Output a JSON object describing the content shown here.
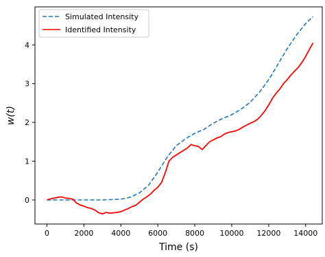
{
  "chart_data": {
    "type": "line",
    "title": "",
    "xlabel": "Time (s)",
    "ylabel": "w(t)",
    "xlim": [
      -650,
      14900
    ],
    "ylim": [
      -0.62,
      4.98
    ],
    "x_ticks": [
      0,
      2000,
      4000,
      6000,
      8000,
      10000,
      12000,
      14000
    ],
    "y_ticks": [
      0,
      1,
      2,
      3,
      4
    ],
    "grid": false,
    "legend_position": "top-left",
    "series": [
      {
        "name": "Simulated Intensity",
        "color": "#1f77b4",
        "style": "dashed",
        "x": [
          0,
          1000,
          2000,
          3000,
          4000,
          4500,
          5000,
          5500,
          6000,
          6500,
          7000,
          7500,
          8000,
          8500,
          9000,
          9500,
          10000,
          10500,
          11000,
          11500,
          12000,
          12500,
          13000,
          13500,
          14000,
          14400
        ],
        "y": [
          0.0,
          0.0,
          0.0,
          0.0,
          0.02,
          0.07,
          0.18,
          0.38,
          0.72,
          1.1,
          1.4,
          1.58,
          1.72,
          1.82,
          1.98,
          2.1,
          2.2,
          2.34,
          2.52,
          2.78,
          3.1,
          3.5,
          3.9,
          4.25,
          4.55,
          4.73
        ]
      },
      {
        "name": "Identified Intensity",
        "color": "#ff0000",
        "style": "solid",
        "x": [
          0,
          200,
          400,
          600,
          800,
          1000,
          1200,
          1400,
          1600,
          1800,
          2000,
          2200,
          2400,
          2600,
          2800,
          3000,
          3200,
          3400,
          3600,
          3800,
          4000,
          4200,
          4400,
          4600,
          4800,
          5000,
          5200,
          5400,
          5600,
          5800,
          6000,
          6200,
          6400,
          6600,
          6800,
          7000,
          7200,
          7400,
          7600,
          7800,
          8000,
          8200,
          8400,
          8600,
          8800,
          9000,
          9200,
          9400,
          9600,
          9800,
          10000,
          10200,
          10400,
          10600,
          10800,
          11000,
          11200,
          11400,
          11600,
          11800,
          12000,
          12200,
          12400,
          12600,
          12800,
          13000,
          13200,
          13400,
          13600,
          13800,
          14000,
          14200,
          14400
        ],
        "y": [
          0.0,
          0.03,
          0.05,
          0.07,
          0.08,
          0.05,
          0.04,
          0.02,
          -0.08,
          -0.13,
          -0.16,
          -0.2,
          -0.22,
          -0.26,
          -0.33,
          -0.36,
          -0.32,
          -0.34,
          -0.33,
          -0.32,
          -0.3,
          -0.26,
          -0.22,
          -0.17,
          -0.14,
          -0.06,
          0.02,
          0.08,
          0.15,
          0.25,
          0.33,
          0.45,
          0.7,
          1.0,
          1.1,
          1.16,
          1.22,
          1.28,
          1.34,
          1.43,
          1.4,
          1.38,
          1.3,
          1.4,
          1.5,
          1.55,
          1.6,
          1.63,
          1.7,
          1.74,
          1.76,
          1.78,
          1.82,
          1.88,
          1.93,
          1.98,
          2.02,
          2.08,
          2.18,
          2.3,
          2.45,
          2.62,
          2.75,
          2.86,
          3.0,
          3.1,
          3.22,
          3.32,
          3.42,
          3.55,
          3.7,
          3.88,
          4.05
        ]
      }
    ]
  }
}
